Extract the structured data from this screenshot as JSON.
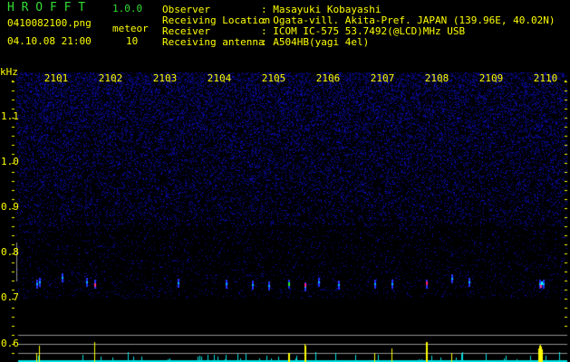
{
  "app": {
    "title": "H R O F F T",
    "version": "1.0.0"
  },
  "file": {
    "name": "0410082100.png",
    "datetime": "04.10.08 21:00"
  },
  "meteor": {
    "label": "meteor",
    "count": "10"
  },
  "info": [
    {
      "label": "Observer",
      "value": ": Masayuki Kobayashi"
    },
    {
      "label": "Receiving Location",
      "value": ": Ogata-vill. Akita-Pref. JAPAN (139.96E, 40.02N)"
    },
    {
      "label": "Receiver",
      "value": ": ICOM IC-575 53.7492(@LCD)MHz USB"
    },
    {
      "label": "Receiving antenna",
      "value": ": A504HB(yagi 4el)"
    }
  ],
  "x_axis": {
    "ticks": [
      "2101",
      "2102",
      "2103",
      "2104",
      "2105",
      "2106",
      "2107",
      "2108",
      "2109",
      "2110"
    ]
  },
  "y_axis": {
    "unit": "kHz",
    "ticks": [
      "1.1",
      "1.0",
      "0.9",
      "0.8",
      "0.7",
      "0.6"
    ]
  },
  "colors": {
    "text": "#ffff00",
    "title": "#33dd33",
    "noise": "#1a1aa0",
    "histogram": "#00e0e0",
    "meteor_bar": "#ffff00",
    "grid": "#909090"
  }
}
